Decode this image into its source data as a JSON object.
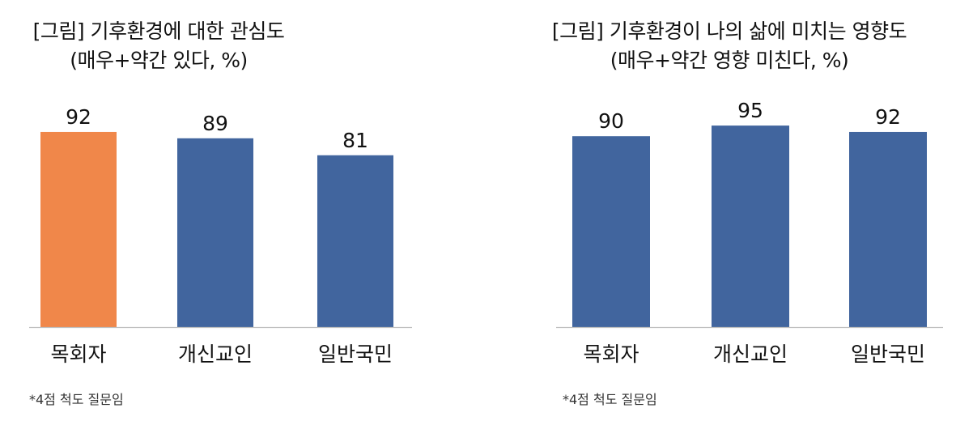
{
  "colors": {
    "highlight": "#F0874A",
    "primary": "#41659E",
    "axis": "#BFBFBF",
    "text": "#111111"
  },
  "chart_data": [
    {
      "type": "bar",
      "title_line1": "[그림] 기후환경에 대한 관심도",
      "title_line2": "(매우+약간 있다, %)",
      "categories": [
        "목회자",
        "개신교인",
        "일반국민"
      ],
      "values": [
        92,
        89,
        81
      ],
      "bar_colors": [
        "#F0874A",
        "#41659E",
        "#41659E"
      ],
      "ylim": [
        0,
        100
      ],
      "note": "*4점 척도 질문임",
      "grid": false
    },
    {
      "type": "bar",
      "title_line1": "[그림] 기후환경이 나의 삶에 미치는 영향도",
      "title_line2": "(매우+약간 영향 미친다, %)",
      "categories": [
        "목회자",
        "개신교인",
        "일반국민"
      ],
      "values": [
        90,
        95,
        92
      ],
      "bar_colors": [
        "#41659E",
        "#41659E",
        "#41659E"
      ],
      "ylim": [
        0,
        100
      ],
      "note": "*4점 척도 질문임",
      "grid": false
    }
  ]
}
